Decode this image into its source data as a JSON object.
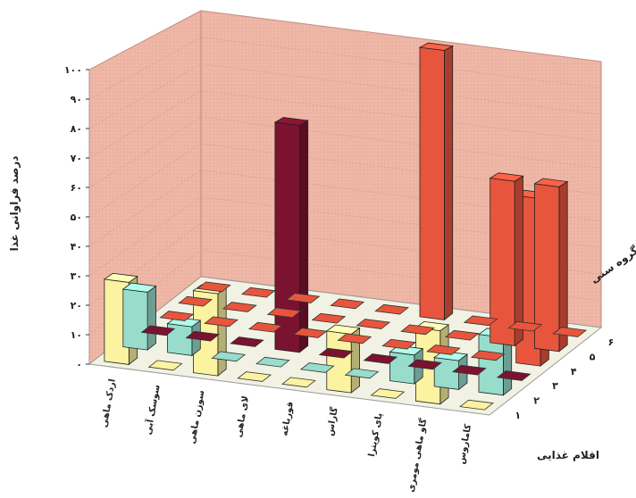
{
  "chart_data": {
    "type": "bar",
    "subtype": "3d-grouped-depth",
    "ylabel": "درصد فراوانی غذا",
    "xlabel": "اقلام غذایی",
    "zlabel": "گروه سنی",
    "yticks": [
      "۰",
      "۱۰",
      "۲۰",
      "۳۰",
      "۴۰",
      "۵۰",
      "۶۰",
      "۷۰",
      "۸۰",
      "۹۰",
      "۱۰۰"
    ],
    "ylim": [
      0,
      100
    ],
    "categories": [
      "اردک ماهی",
      "سوسک آبی",
      "سوزن ماهی",
      "لای ماهی",
      "قورباغه",
      "گاراس",
      "پای کوپترا",
      "گاو ماهی مومری",
      "کاماروس"
    ],
    "series": [
      {
        "name": "۱",
        "color": "#e8553d",
        "values": [
          0,
          0,
          0,
          0,
          0,
          100,
          0,
          0,
          0
        ]
      },
      {
        "name": "۲",
        "color": "#e8553d",
        "values": [
          0,
          0,
          0,
          0,
          0,
          0,
          0,
          60,
          60
        ]
      },
      {
        "name": "۳",
        "color": "#e8553d",
        "values": [
          0,
          0,
          0,
          0,
          0,
          0,
          0,
          0,
          60
        ]
      },
      {
        "name": "۴",
        "color": "#7a1230",
        "values": [
          0,
          0,
          0,
          80,
          0,
          0,
          0,
          0,
          0
        ]
      },
      {
        "name": "۵",
        "color": "#98dccc",
        "values": [
          20,
          10,
          0,
          0,
          0,
          0,
          10,
          10,
          20
        ]
      },
      {
        "name": "۶",
        "color": "#fbf3a0",
        "values": [
          28,
          0,
          28,
          0,
          0,
          20,
          0,
          25,
          0
        ]
      }
    ],
    "row_labels": [
      "۱",
      "۲",
      "۳",
      "۴",
      "۵",
      "۶"
    ],
    "grid": true,
    "legend": "none"
  }
}
